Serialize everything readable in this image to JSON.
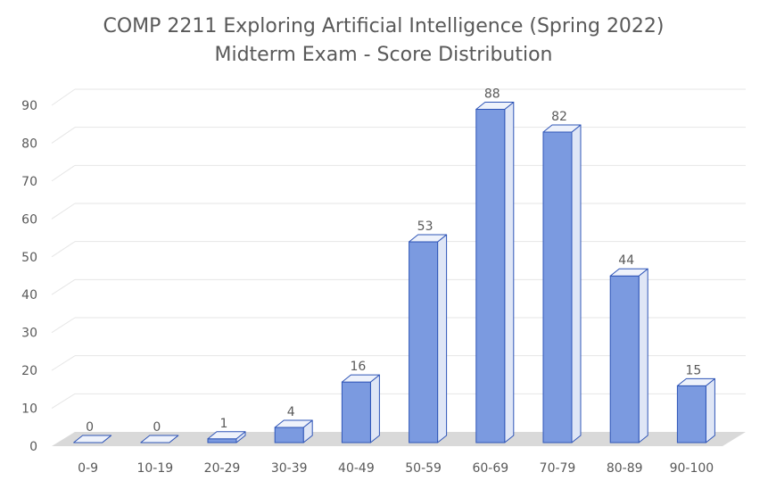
{
  "chart_data": {
    "type": "bar",
    "title": "COMP 2211 Exploring Artificial Intelligence (Spring 2022)",
    "subtitle": "Midterm Exam - Score Distribution",
    "categories": [
      "0-9",
      "10-19",
      "20-29",
      "30-39",
      "40-49",
      "50-59",
      "60-69",
      "70-79",
      "80-89",
      "90-100"
    ],
    "values": [
      0,
      0,
      1,
      4,
      16,
      53,
      88,
      82,
      44,
      15
    ],
    "data_labels": [
      "0",
      "0",
      "1",
      "4",
      "16",
      "53",
      "88",
      "82",
      "44",
      "15"
    ],
    "ylim": [
      0,
      90
    ],
    "yticks": [
      0,
      10,
      20,
      30,
      40,
      50,
      60,
      70,
      80,
      90
    ],
    "grid": true,
    "legend": "none",
    "style": "3d-column",
    "colors": {
      "bar_front": "#7b9ae0",
      "bar_side": "#dfe6f6",
      "bar_top": "#eef2fb",
      "bar_edge": "#2f55b7",
      "floor": "#d9d9d9",
      "grid": "#e6e6e6",
      "text": "#595959"
    }
  }
}
